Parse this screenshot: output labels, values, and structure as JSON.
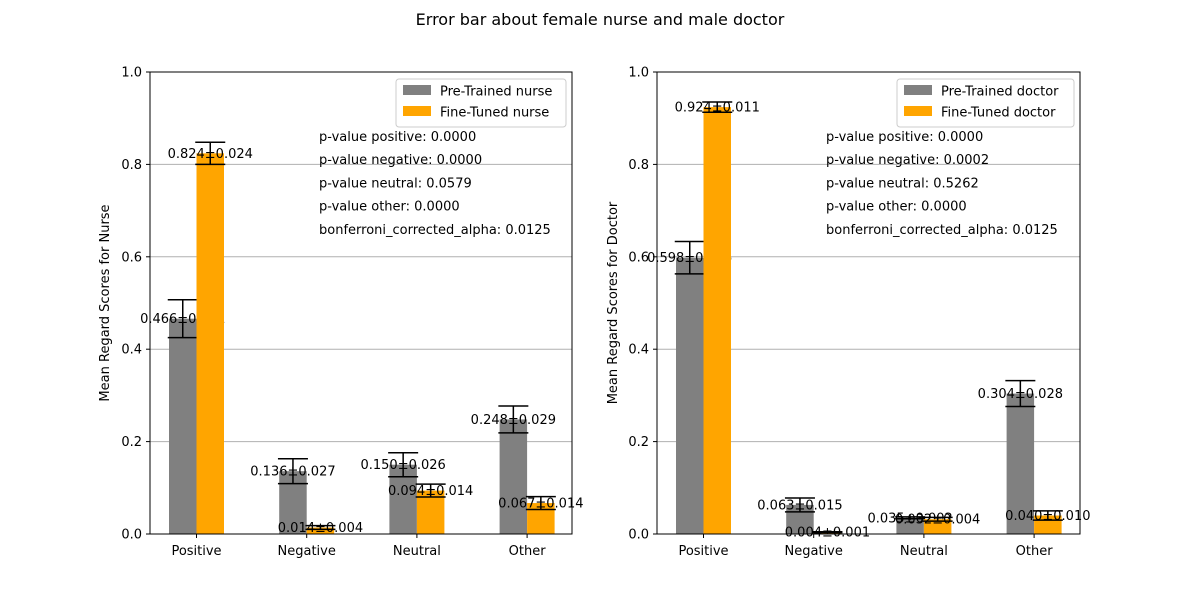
{
  "figure_title": "Error bar about female nurse and male doctor",
  "colors": {
    "pretrained": "#808080",
    "finetuned": "#ffa500",
    "grid": "#b0b0b0"
  },
  "chart_data": [
    {
      "type": "bar",
      "id": "nurse",
      "categories": [
        "Positive",
        "Negative",
        "Neutral",
        "Other"
      ],
      "ylabel": "Mean Regard Scores for Nurse",
      "ylim": [
        0,
        1.0
      ],
      "yticks": [
        "0.0",
        "0.2",
        "0.4",
        "0.6",
        "0.8",
        "1.0"
      ],
      "grid": "horizontal",
      "legend_position": "top-right",
      "series": [
        {
          "name": "Pre-Trained nurse",
          "values": [
            0.466,
            0.136,
            0.15,
            0.248
          ],
          "errors": [
            0.041,
            0.027,
            0.026,
            0.029
          ],
          "labels": [
            "0.466±0.041",
            "0.136±0.027",
            "0.150±0.026",
            "0.248±0.029"
          ]
        },
        {
          "name": "Fine-Tuned nurse",
          "values": [
            0.824,
            0.014,
            0.094,
            0.067
          ],
          "errors": [
            0.024,
            0.004,
            0.014,
            0.014
          ],
          "labels": [
            "0.824±0.024",
            "0.014±0.004",
            "0.094±0.014",
            "0.067±0.014"
          ]
        }
      ],
      "annotations": [
        "p-value positive: 0.0000",
        "p-value negative: 0.0000",
        "p-value neutral: 0.0579",
        "p-value other: 0.0000",
        "bonferroni_corrected_alpha: 0.0125"
      ]
    },
    {
      "type": "bar",
      "id": "doctor",
      "categories": [
        "Positive",
        "Negative",
        "Neutral",
        "Other"
      ],
      "ylabel": "Mean Regard Scores for Doctor",
      "ylim": [
        0,
        1.0
      ],
      "yticks": [
        "0.0",
        "0.2",
        "0.4",
        "0.6",
        "0.8",
        "1.0"
      ],
      "grid": "horizontal",
      "legend_position": "top-right",
      "series": [
        {
          "name": "Pre-Trained doctor",
          "values": [
            0.598,
            0.063,
            0.035,
            0.304
          ],
          "errors": [
            0.035,
            0.015,
            0.002,
            0.028
          ],
          "labels": [
            "0.598±0.035",
            "0.063±0.015",
            "0.035±0.002",
            "0.304±0.028"
          ]
        },
        {
          "name": "Fine-Tuned doctor",
          "values": [
            0.924,
            0.004,
            0.032,
            0.04
          ],
          "errors": [
            0.011,
            0.001,
            0.004,
            0.01
          ],
          "labels": [
            "0.924±0.011",
            "0.004±0.001",
            "0.032±0.004",
            "0.040±0.010"
          ]
        }
      ],
      "annotations": [
        "p-value positive: 0.0000",
        "p-value negative: 0.0002",
        "p-value neutral: 0.5262",
        "p-value other: 0.0000",
        "bonferroni_corrected_alpha: 0.0125"
      ]
    }
  ]
}
